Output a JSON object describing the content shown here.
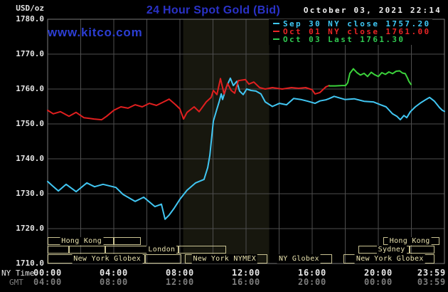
{
  "header": {
    "title": "24 Hour Spot Gold (Bid)",
    "datetime": "October 03, 2021 22:14",
    "watermark": "www.kitco.com",
    "y_unit": "USD/oz"
  },
  "colors": {
    "background": "#000000",
    "grid": "#4e4e4e",
    "frame": "#7a7a7a",
    "title_blue": "#2a32c8",
    "kitco_blue": "#2c3ed4",
    "datetime_white": "#f0f0f0",
    "y_label": "#e4e4e4",
    "ny_time_row": "#e8e8e8",
    "gmt_row": "#7d7d7d",
    "session_border": "#c9c292",
    "session_text": "#e8e1ad",
    "shaded_band": "#17170e"
  },
  "legend": [
    {
      "label": "Sep 30 NY close 1757.20",
      "color": "#3fc8f5"
    },
    {
      "label": "Oct 01 NY close 1761.00",
      "color": "#e82525"
    },
    {
      "label": "Oct 03 Last 1761.30",
      "color": "#30c951"
    }
  ],
  "axes": {
    "x_left_label": "NY Time",
    "x_sub_label": "GMT",
    "tick_hours": [
      0,
      4,
      8,
      12,
      16,
      20,
      24
    ],
    "ny_ticks": [
      "00:00",
      "04:00",
      "08:00",
      "12:00",
      "16:00",
      "20:00",
      "23:59"
    ],
    "gmt_ticks": [
      "04:00",
      "08:00",
      "12:00",
      "16:00",
      "20:00",
      "00:00",
      "03:59"
    ],
    "y_ticks": [
      "1780.0",
      "1770.0",
      "1760.0",
      "1750.0",
      "1740.0",
      "1730.0",
      "1720.0",
      "1710.0"
    ]
  },
  "chart_data": {
    "type": "line",
    "title": "24 Hour Spot Gold (Bid)",
    "xlabel": "NY Time (hours)",
    "ylabel": "USD/oz",
    "x_range": [
      0,
      24
    ],
    "y_range": [
      1710,
      1780
    ],
    "grid": {
      "x_step_hours": 2,
      "y_step": 10,
      "visible": true
    },
    "legend_position": "top-right",
    "shaded_band": {
      "x_start": 8.2,
      "x_end": 13.4,
      "color": "#17170e"
    },
    "series": [
      {
        "name": "Sep 30 NY close 1757.20",
        "color": "#41c6f2",
        "points": [
          [
            0,
            1733.5
          ],
          [
            0.26,
            1732.4
          ],
          [
            0.65,
            1730.8
          ],
          [
            1.12,
            1732.7
          ],
          [
            1.72,
            1730.6
          ],
          [
            2.37,
            1733.1
          ],
          [
            2.84,
            1732.0
          ],
          [
            3.35,
            1732.7
          ],
          [
            4.13,
            1731.8
          ],
          [
            4.56,
            1729.8
          ],
          [
            5.29,
            1727.8
          ],
          [
            5.81,
            1729.0
          ],
          [
            6.49,
            1726.3
          ],
          [
            6.88,
            1727.0
          ],
          [
            7.1,
            1722.7
          ],
          [
            7.35,
            1723.9
          ],
          [
            7.66,
            1725.9
          ],
          [
            8.0,
            1728.4
          ],
          [
            8.43,
            1731.0
          ],
          [
            8.95,
            1733.1
          ],
          [
            9.46,
            1734.1
          ],
          [
            9.68,
            1737.5
          ],
          [
            9.81,
            1741.0
          ],
          [
            10.02,
            1750.8
          ],
          [
            10.24,
            1754.3
          ],
          [
            10.37,
            1756.3
          ],
          [
            10.5,
            1758.6
          ],
          [
            10.58,
            1757.0
          ],
          [
            10.8,
            1760.4
          ],
          [
            11.05,
            1763.1
          ],
          [
            11.23,
            1761.0
          ],
          [
            11.44,
            1762.2
          ],
          [
            11.61,
            1759.4
          ],
          [
            11.83,
            1758.4
          ],
          [
            12.04,
            1760.0
          ],
          [
            12.3,
            1759.6
          ],
          [
            12.6,
            1759.4
          ],
          [
            12.9,
            1758.6
          ],
          [
            13.16,
            1756.3
          ],
          [
            13.59,
            1755.0
          ],
          [
            14.02,
            1755.9
          ],
          [
            14.45,
            1755.5
          ],
          [
            14.88,
            1757.3
          ],
          [
            15.31,
            1757.0
          ],
          [
            15.74,
            1756.5
          ],
          [
            16.17,
            1755.9
          ],
          [
            16.47,
            1756.6
          ],
          [
            16.82,
            1756.9
          ],
          [
            17.0,
            1757.2
          ],
          [
            17.33,
            1757.9
          ],
          [
            17.98,
            1757.0
          ],
          [
            18.54,
            1757.2
          ],
          [
            19.14,
            1756.5
          ],
          [
            19.7,
            1756.3
          ],
          [
            20.13,
            1755.5
          ],
          [
            20.47,
            1754.9
          ],
          [
            20.86,
            1752.9
          ],
          [
            21.12,
            1752.2
          ],
          [
            21.33,
            1751.2
          ],
          [
            21.55,
            1752.4
          ],
          [
            21.72,
            1751.8
          ],
          [
            21.94,
            1753.5
          ],
          [
            22.24,
            1754.9
          ],
          [
            22.58,
            1756.1
          ],
          [
            22.88,
            1757.0
          ],
          [
            23.1,
            1757.6
          ],
          [
            23.4,
            1756.5
          ],
          [
            23.7,
            1754.7
          ],
          [
            23.87,
            1753.9
          ],
          [
            24,
            1753.6
          ]
        ]
      },
      {
        "name": "Oct 01 NY close 1761.00",
        "color": "#e01f1f",
        "points": [
          [
            0,
            1753.9
          ],
          [
            0.34,
            1752.9
          ],
          [
            0.77,
            1753.5
          ],
          [
            1.29,
            1752.2
          ],
          [
            1.72,
            1753.3
          ],
          [
            2.19,
            1751.8
          ],
          [
            2.8,
            1751.4
          ],
          [
            3.27,
            1751.2
          ],
          [
            3.57,
            1752.2
          ],
          [
            4.0,
            1753.9
          ],
          [
            4.43,
            1754.9
          ],
          [
            4.86,
            1754.5
          ],
          [
            5.29,
            1755.5
          ],
          [
            5.72,
            1754.9
          ],
          [
            6.15,
            1755.9
          ],
          [
            6.58,
            1755.3
          ],
          [
            7.01,
            1756.3
          ],
          [
            7.35,
            1757.1
          ],
          [
            7.74,
            1755.5
          ],
          [
            8.0,
            1754.3
          ],
          [
            8.22,
            1751.4
          ],
          [
            8.43,
            1753.3
          ],
          [
            8.86,
            1754.9
          ],
          [
            9.16,
            1753.5
          ],
          [
            9.59,
            1756.3
          ],
          [
            9.89,
            1757.6
          ],
          [
            10.02,
            1759.6
          ],
          [
            10.24,
            1758.4
          ],
          [
            10.45,
            1763.0
          ],
          [
            10.67,
            1758.6
          ],
          [
            10.88,
            1761.6
          ],
          [
            11.1,
            1759.6
          ],
          [
            11.31,
            1758.8
          ],
          [
            11.53,
            1762.4
          ],
          [
            11.96,
            1762.7
          ],
          [
            12.17,
            1761.4
          ],
          [
            12.47,
            1762.0
          ],
          [
            12.82,
            1760.4
          ],
          [
            13.16,
            1760.0
          ],
          [
            13.59,
            1760.4
          ],
          [
            14.19,
            1760.0
          ],
          [
            14.75,
            1760.4
          ],
          [
            15.18,
            1760.2
          ],
          [
            15.61,
            1760.4
          ],
          [
            16.0,
            1759.8
          ],
          [
            16.17,
            1758.6
          ],
          [
            16.47,
            1759.0
          ],
          [
            16.82,
            1760.6
          ],
          [
            17.03,
            1761.0
          ]
        ]
      },
      {
        "name": "Oct 03 Last 1761.30",
        "color": "#3bd23b",
        "points": [
          [
            17.03,
            1760.9
          ],
          [
            17.4,
            1760.9
          ],
          [
            17.8,
            1761.0
          ],
          [
            18.02,
            1761.0
          ],
          [
            18.15,
            1761.8
          ],
          [
            18.28,
            1764.5
          ],
          [
            18.49,
            1765.8
          ],
          [
            18.71,
            1764.7
          ],
          [
            18.92,
            1764.0
          ],
          [
            19.14,
            1764.5
          ],
          [
            19.35,
            1763.6
          ],
          [
            19.57,
            1764.8
          ],
          [
            19.78,
            1764.1
          ],
          [
            20.0,
            1763.6
          ],
          [
            20.21,
            1764.7
          ],
          [
            20.43,
            1764.2
          ],
          [
            20.64,
            1764.9
          ],
          [
            20.86,
            1764.4
          ],
          [
            21.08,
            1765.1
          ],
          [
            21.29,
            1765.2
          ],
          [
            21.46,
            1764.6
          ],
          [
            21.63,
            1764.4
          ],
          [
            21.76,
            1763.2
          ],
          [
            21.85,
            1762.2
          ],
          [
            21.98,
            1761.3
          ]
        ]
      }
    ],
    "sessions": {
      "rows": [
        {
          "boxes": [
            [
              0,
              1.97
            ],
            [
              1.97,
              4.0
            ],
            [
              4.0,
              5.63
            ],
            [
              20.3,
              21.98
            ],
            [
              21.98,
              23.7
            ]
          ],
          "labels": [
            {
              "text": "Hong Kong",
              "x": 2.05
            },
            {
              "text": "Hong Kong",
              "x": 21.9
            }
          ]
        },
        {
          "boxes": [
            [
              0,
              1.3
            ],
            [
              1.3,
              3.5
            ],
            [
              3.5,
              7.9
            ],
            [
              7.9,
              10.8
            ],
            [
              18.8,
              21.9
            ],
            [
              21.9,
              23.4
            ]
          ],
          "labels": [
            {
              "text": "London",
              "x": 6.9
            },
            {
              "text": "Sydney",
              "x": 20.8
            }
          ]
        },
        {
          "boxes": [
            [
              0,
              5.9
            ],
            [
              5.9,
              8.1
            ],
            [
              8.3,
              13.3
            ],
            [
              13.9,
              17.2
            ],
            [
              17.9,
              23.4
            ]
          ],
          "labels": [
            {
              "text": "New York Globex",
              "x": 3.6
            },
            {
              "text": "New York NYMEX",
              "x": 10.7
            },
            {
              "text": "NY Globex",
              "x": 15.2
            },
            {
              "text": "New York Globex",
              "x": 20.7
            }
          ]
        }
      ]
    }
  }
}
